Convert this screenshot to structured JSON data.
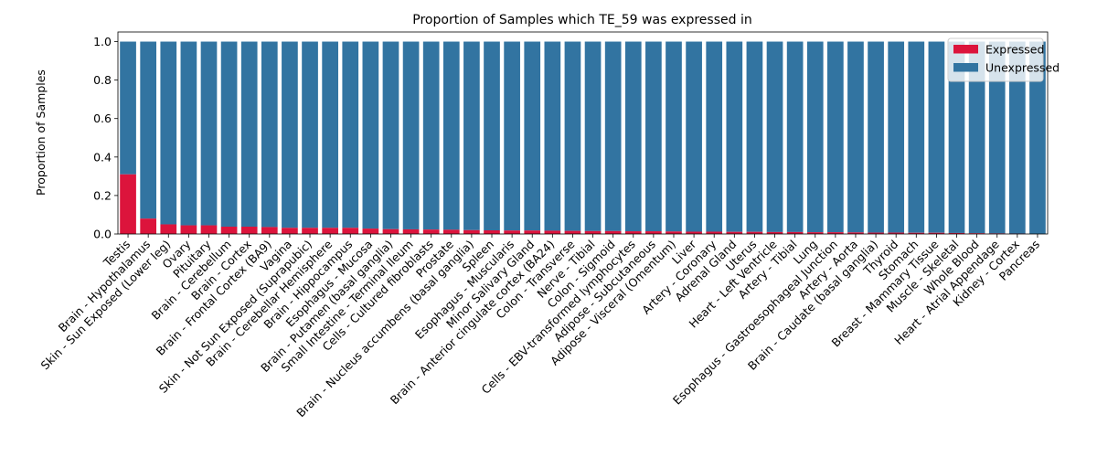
{
  "chart_data": {
    "type": "bar",
    "stacked": true,
    "title": "Proportion of Samples which TE_59 was expressed in",
    "xlabel": "",
    "ylabel": "Proportion of Samples",
    "ylim": [
      0,
      1.05
    ],
    "yticks": [
      "0.0",
      "0.2",
      "0.4",
      "0.6",
      "0.8",
      "1.0"
    ],
    "legend_position": "top-right",
    "categories": [
      "Testis",
      "Brain - Hypothalamus",
      "Skin - Sun Exposed (Lower leg)",
      "Ovary",
      "Pituitary",
      "Brain - Cerebellum",
      "Brain - Cortex",
      "Brain - Frontal Cortex (BA9)",
      "Vagina",
      "Skin - Not Sun Exposed (Suprapubic)",
      "Brain - Cerebellar Hemisphere",
      "Brain - Hippocampus",
      "Esophagus - Mucosa",
      "Brain - Putamen (basal ganglia)",
      "Small Intestine - Terminal Ileum",
      "Cells - Cultured fibroblasts",
      "Prostate",
      "Brain - Nucleus accumbens (basal ganglia)",
      "Spleen",
      "Esophagus - Muscularis",
      "Minor Salivary Gland",
      "Brain - Anterior cingulate cortex (BA24)",
      "Colon - Transverse",
      "Nerve - Tibial",
      "Colon - Sigmoid",
      "Cells - EBV-transformed lymphocytes",
      "Adipose - Subcutaneous",
      "Adipose - Visceral (Omentum)",
      "Liver",
      "Artery - Coronary",
      "Adrenal Gland",
      "Uterus",
      "Heart - Left Ventricle",
      "Artery - Tibial",
      "Lung",
      "Esophagus - Gastroesophageal Junction",
      "Artery - Aorta",
      "Brain - Caudate (basal ganglia)",
      "Thyroid",
      "Stomach",
      "Breast - Mammary Tissue",
      "Muscle - Skeletal",
      "Whole Blood",
      "Heart - Atrial Appendage",
      "Kidney - Cortex",
      "Pancreas"
    ],
    "series": [
      {
        "name": "Expressed",
        "color": "#dc143c",
        "values": [
          0.31,
          0.08,
          0.05,
          0.045,
          0.045,
          0.038,
          0.038,
          0.036,
          0.032,
          0.032,
          0.032,
          0.032,
          0.028,
          0.025,
          0.024,
          0.023,
          0.022,
          0.02,
          0.019,
          0.018,
          0.018,
          0.017,
          0.016,
          0.015,
          0.015,
          0.014,
          0.014,
          0.013,
          0.012,
          0.012,
          0.011,
          0.011,
          0.01,
          0.01,
          0.009,
          0.009,
          0.008,
          0.007,
          0.007,
          0.006,
          0.006,
          0.005,
          0.004,
          0.003,
          0.002,
          0.0
        ]
      },
      {
        "name": "Unexpressed",
        "color": "#3274a1",
        "values": [
          0.69,
          0.92,
          0.95,
          0.955,
          0.955,
          0.962,
          0.962,
          0.964,
          0.968,
          0.968,
          0.968,
          0.968,
          0.972,
          0.975,
          0.976,
          0.977,
          0.978,
          0.98,
          0.981,
          0.982,
          0.982,
          0.983,
          0.984,
          0.985,
          0.985,
          0.986,
          0.986,
          0.987,
          0.988,
          0.988,
          0.989,
          0.989,
          0.99,
          0.99,
          0.991,
          0.991,
          0.992,
          0.993,
          0.993,
          0.994,
          0.994,
          0.995,
          0.996,
          0.997,
          0.998,
          1.0
        ]
      }
    ]
  }
}
